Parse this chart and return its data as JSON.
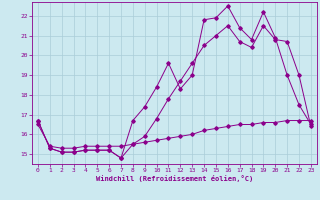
{
  "background_color": "#cce9f0",
  "grid_color": "#aacdd8",
  "line_color": "#8b008b",
  "xlim": [
    -0.5,
    23.5
  ],
  "ylim": [
    14.5,
    22.7
  ],
  "yticks": [
    15,
    16,
    17,
    18,
    19,
    20,
    21,
    22
  ],
  "xticks": [
    0,
    1,
    2,
    3,
    4,
    5,
    6,
    7,
    8,
    9,
    10,
    11,
    12,
    13,
    14,
    15,
    16,
    17,
    18,
    19,
    20,
    21,
    22,
    23
  ],
  "xlabel": "Windchill (Refroidissement éolien,°C)",
  "line1_x": [
    0,
    1,
    2,
    3,
    4,
    5,
    6,
    7,
    8,
    9,
    10,
    11,
    12,
    13,
    14,
    15,
    16,
    17,
    18,
    19,
    20,
    21,
    22,
    23
  ],
  "line1_y": [
    16.7,
    15.3,
    15.1,
    15.1,
    15.2,
    15.2,
    15.2,
    14.8,
    16.7,
    17.4,
    18.4,
    19.6,
    18.3,
    19.0,
    21.8,
    21.9,
    22.5,
    21.4,
    20.8,
    22.2,
    20.9,
    19.0,
    17.5,
    16.5
  ],
  "line2_x": [
    0,
    1,
    2,
    3,
    4,
    5,
    6,
    7,
    8,
    9,
    10,
    11,
    12,
    13,
    14,
    15,
    16,
    17,
    18,
    19,
    20,
    21,
    22,
    23
  ],
  "line2_y": [
    16.7,
    15.3,
    15.1,
    15.1,
    15.2,
    15.2,
    15.2,
    14.8,
    15.5,
    15.9,
    16.8,
    17.8,
    18.7,
    19.6,
    20.5,
    21.0,
    21.5,
    20.7,
    20.4,
    21.5,
    20.8,
    20.7,
    19.0,
    16.4
  ],
  "line3_x": [
    0,
    1,
    2,
    3,
    4,
    5,
    6,
    7,
    8,
    9,
    10,
    11,
    12,
    13,
    14,
    15,
    16,
    17,
    18,
    19,
    20,
    21,
    22,
    23
  ],
  "line3_y": [
    16.5,
    15.4,
    15.3,
    15.3,
    15.4,
    15.4,
    15.4,
    15.4,
    15.5,
    15.6,
    15.7,
    15.8,
    15.9,
    16.0,
    16.2,
    16.3,
    16.4,
    16.5,
    16.5,
    16.6,
    16.6,
    16.7,
    16.7,
    16.7
  ]
}
